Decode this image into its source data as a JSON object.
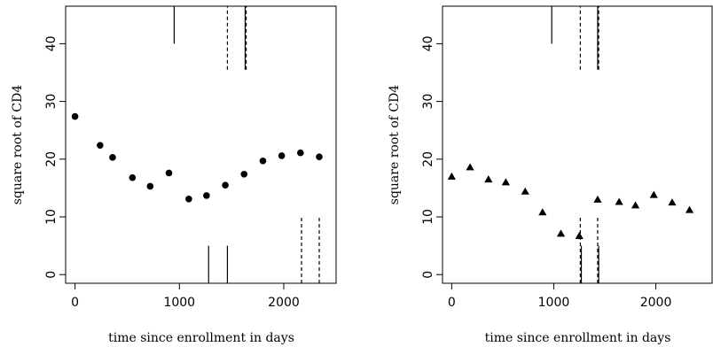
{
  "chart_data": [
    {
      "type": "scatter",
      "marker": "circle",
      "title": "",
      "xlabel": "time since enrollment in days",
      "ylabel": "square root of CD4",
      "xlim": [
        -90,
        2510
      ],
      "ylim": [
        -1.5,
        46.5
      ],
      "xticks": [
        0,
        1000,
        2000
      ],
      "yticks": [
        0,
        10,
        20,
        30,
        40
      ],
      "points": [
        {
          "x": 0,
          "y": 27.4
        },
        {
          "x": 240,
          "y": 22.4
        },
        {
          "x": 360,
          "y": 20.3
        },
        {
          "x": 550,
          "y": 16.8
        },
        {
          "x": 720,
          "y": 15.3
        },
        {
          "x": 900,
          "y": 17.6
        },
        {
          "x": 1090,
          "y": 13.1
        },
        {
          "x": 1260,
          "y": 13.7
        },
        {
          "x": 1440,
          "y": 15.5
        },
        {
          "x": 1620,
          "y": 17.4
        },
        {
          "x": 1800,
          "y": 19.7
        },
        {
          "x": 1980,
          "y": 20.6
        },
        {
          "x": 2160,
          "y": 21.1
        },
        {
          "x": 2340,
          "y": 20.4
        }
      ],
      "event_lines": [
        {
          "x": 950,
          "y_from": 40,
          "y_to": 46.5,
          "style": "solid"
        },
        {
          "x": 1460,
          "y_from": 35.5,
          "y_to": 46.5,
          "style": "dashed"
        },
        {
          "x": 1630,
          "y_from": 35.5,
          "y_to": 46.5,
          "style": "solid"
        },
        {
          "x": 1640,
          "y_from": 35.5,
          "y_to": 46.5,
          "style": "dashed"
        },
        {
          "x": 1280,
          "y_from": -1.5,
          "y_to": 5,
          "style": "solid"
        },
        {
          "x": 1460,
          "y_from": -1.5,
          "y_to": 5,
          "style": "solid"
        },
        {
          "x": 2170,
          "y_from": -1.5,
          "y_to": 10,
          "style": "dashed"
        },
        {
          "x": 2340,
          "y_from": -1.5,
          "y_to": 10,
          "style": "dashed"
        }
      ]
    },
    {
      "type": "scatter",
      "marker": "triangle",
      "title": "",
      "xlabel": "time since enrollment in days",
      "ylabel": "square root of CD4",
      "xlim": [
        -90,
        2560
      ],
      "ylim": [
        -1.5,
        46.5
      ],
      "xticks": [
        0,
        1000,
        2000
      ],
      "yticks": [
        0,
        10,
        20,
        30,
        40
      ],
      "points": [
        {
          "x": 0,
          "y": 17.0
        },
        {
          "x": 180,
          "y": 18.6
        },
        {
          "x": 360,
          "y": 16.5
        },
        {
          "x": 530,
          "y": 16.0
        },
        {
          "x": 720,
          "y": 14.4
        },
        {
          "x": 890,
          "y": 10.8
        },
        {
          "x": 1070,
          "y": 7.1
        },
        {
          "x": 1250,
          "y": 6.7
        },
        {
          "x": 1430,
          "y": 13.0
        },
        {
          "x": 1640,
          "y": 12.6
        },
        {
          "x": 1800,
          "y": 12.0
        },
        {
          "x": 1980,
          "y": 13.8
        },
        {
          "x": 2160,
          "y": 12.5
        },
        {
          "x": 2330,
          "y": 11.2
        }
      ],
      "event_lines": [
        {
          "x": 980,
          "y_from": 40,
          "y_to": 46.5,
          "style": "solid"
        },
        {
          "x": 1260,
          "y_from": 35.5,
          "y_to": 46.5,
          "style": "dashed"
        },
        {
          "x": 1430,
          "y_from": 35.5,
          "y_to": 46.5,
          "style": "solid"
        },
        {
          "x": 1440,
          "y_from": 35.5,
          "y_to": 46.5,
          "style": "dashed"
        },
        {
          "x": 1260,
          "y_from": -1.5,
          "y_to": 10,
          "style": "dashed"
        },
        {
          "x": 1270,
          "y_from": -1.5,
          "y_to": 5,
          "style": "solid"
        },
        {
          "x": 1430,
          "y_from": -1.5,
          "y_to": 10,
          "style": "dashed"
        },
        {
          "x": 1440,
          "y_from": -1.5,
          "y_to": 5,
          "style": "solid"
        }
      ]
    }
  ]
}
